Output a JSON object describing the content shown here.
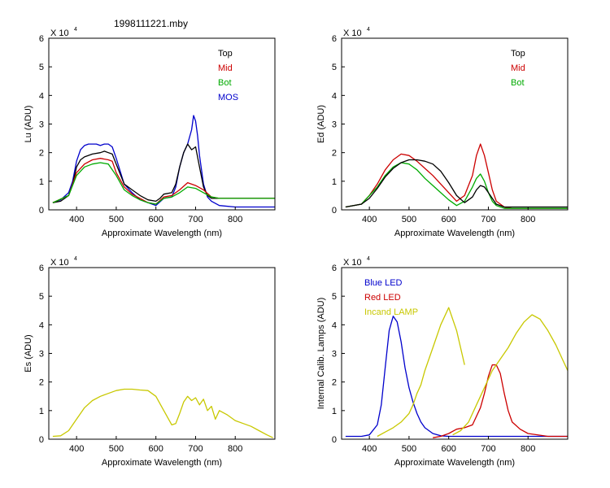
{
  "figure": {
    "title": "1998111221.mby"
  },
  "chart_data": [
    {
      "type": "line",
      "panel": "top-left",
      "xlabel": "Approximate Wavelength (nm)",
      "ylabel": "Lu (ADU)",
      "scale_label": "X 10",
      "scale_exp": "4",
      "xlim": [
        330,
        900
      ],
      "ylim": [
        0,
        6
      ],
      "xticks": [
        400,
        500,
        600,
        700,
        800
      ],
      "yticks": [
        0,
        1,
        2,
        3,
        4,
        5,
        6
      ],
      "legend": [
        {
          "label": "Top",
          "color": "#000000"
        },
        {
          "label": "Mid",
          "color": "#cc0000"
        },
        {
          "label": "Bot",
          "color": "#00aa00"
        },
        {
          "label": "MOS",
          "color": "#0000cc"
        }
      ],
      "legend_position": "top-right",
      "series": [
        {
          "name": "MOS",
          "color": "#0000cc",
          "x": [
            340,
            360,
            380,
            390,
            400,
            410,
            420,
            430,
            440,
            450,
            460,
            470,
            480,
            490,
            500,
            520,
            540,
            560,
            580,
            600,
            620,
            640,
            650,
            660,
            670,
            680,
            690,
            695,
            700,
            705,
            710,
            720,
            730,
            740,
            760,
            800,
            850,
            900
          ],
          "y": [
            0.25,
            0.35,
            0.6,
            1.0,
            1.7,
            2.1,
            2.25,
            2.3,
            2.3,
            2.3,
            2.25,
            2.3,
            2.3,
            2.2,
            1.8,
            0.9,
            0.6,
            0.35,
            0.25,
            0.15,
            0.4,
            0.45,
            0.8,
            1.5,
            2.0,
            2.3,
            2.8,
            3.3,
            3.1,
            2.6,
            1.9,
            0.9,
            0.45,
            0.3,
            0.15,
            0.1,
            0.1,
            0.1
          ]
        },
        {
          "name": "Top",
          "color": "#000000",
          "x": [
            340,
            360,
            380,
            390,
            400,
            410,
            420,
            440,
            460,
            470,
            480,
            490,
            500,
            520,
            540,
            560,
            580,
            600,
            610,
            620,
            640,
            650,
            660,
            670,
            680,
            690,
            700,
            710,
            720,
            730,
            740,
            760,
            800,
            850,
            900
          ],
          "y": [
            0.25,
            0.3,
            0.5,
            0.9,
            1.5,
            1.75,
            1.85,
            1.95,
            2.0,
            2.05,
            2.0,
            1.95,
            1.6,
            0.9,
            0.7,
            0.5,
            0.35,
            0.3,
            0.4,
            0.55,
            0.6,
            0.9,
            1.5,
            2.0,
            2.3,
            2.1,
            2.2,
            1.5,
            0.8,
            0.5,
            0.4,
            0.4,
            0.4,
            0.4,
            0.4
          ]
        },
        {
          "name": "Mid",
          "color": "#cc0000",
          "x": [
            340,
            380,
            400,
            420,
            440,
            460,
            480,
            490,
            500,
            520,
            540,
            560,
            580,
            600,
            620,
            640,
            660,
            680,
            700,
            720,
            740,
            760,
            800,
            850,
            900
          ],
          "y": [
            0.25,
            0.5,
            1.3,
            1.6,
            1.75,
            1.8,
            1.75,
            1.7,
            1.3,
            0.8,
            0.55,
            0.4,
            0.25,
            0.2,
            0.45,
            0.5,
            0.7,
            0.95,
            0.85,
            0.7,
            0.45,
            0.4,
            0.4,
            0.4,
            0.4
          ]
        },
        {
          "name": "Bot",
          "color": "#00aa00",
          "x": [
            340,
            380,
            400,
            420,
            440,
            460,
            480,
            500,
            520,
            540,
            560,
            580,
            600,
            620,
            640,
            660,
            680,
            700,
            720,
            740,
            760,
            800,
            850,
            900
          ],
          "y": [
            0.25,
            0.5,
            1.2,
            1.5,
            1.6,
            1.65,
            1.6,
            1.2,
            0.7,
            0.5,
            0.35,
            0.25,
            0.2,
            0.4,
            0.45,
            0.6,
            0.8,
            0.75,
            0.6,
            0.45,
            0.4,
            0.4,
            0.4,
            0.4
          ]
        }
      ]
    },
    {
      "type": "line",
      "panel": "top-right",
      "xlabel": "Approximate Wavelength (nm)",
      "ylabel": "Ed  (ADU)",
      "scale_label": "X 10",
      "scale_exp": "4",
      "xlim": [
        330,
        900
      ],
      "ylim": [
        0,
        6
      ],
      "xticks": [
        400,
        500,
        600,
        700,
        800
      ],
      "yticks": [
        0,
        1,
        2,
        3,
        4,
        5,
        6
      ],
      "legend": [
        {
          "label": "Top",
          "color": "#000000"
        },
        {
          "label": "Mid",
          "color": "#cc0000"
        },
        {
          "label": "Bot",
          "color": "#00aa00"
        }
      ],
      "legend_position": "top-right",
      "series": [
        {
          "name": "Mid",
          "color": "#cc0000",
          "x": [
            340,
            380,
            400,
            420,
            440,
            460,
            480,
            500,
            520,
            540,
            560,
            580,
            600,
            620,
            640,
            660,
            670,
            680,
            690,
            700,
            710,
            720,
            740,
            760,
            800,
            850,
            900
          ],
          "y": [
            0.1,
            0.2,
            0.5,
            0.9,
            1.4,
            1.75,
            1.95,
            1.9,
            1.7,
            1.45,
            1.2,
            0.9,
            0.6,
            0.3,
            0.5,
            1.2,
            1.9,
            2.3,
            1.9,
            1.3,
            0.7,
            0.3,
            0.1,
            0.05,
            0.05,
            0.05,
            0.05
          ]
        },
        {
          "name": "Bot",
          "color": "#00aa00",
          "x": [
            340,
            380,
            400,
            420,
            440,
            460,
            480,
            500,
            520,
            540,
            560,
            580,
            600,
            620,
            640,
            660,
            670,
            680,
            690,
            700,
            710,
            720,
            740,
            760,
            800,
            850,
            900
          ],
          "y": [
            0.1,
            0.2,
            0.5,
            0.8,
            1.2,
            1.5,
            1.65,
            1.6,
            1.4,
            1.1,
            0.85,
            0.6,
            0.35,
            0.15,
            0.3,
            0.8,
            1.1,
            1.25,
            1.0,
            0.6,
            0.3,
            0.15,
            0.05,
            0.05,
            0.05,
            0.05,
            0.05
          ]
        },
        {
          "name": "Top",
          "color": "#000000",
          "x": [
            340,
            380,
            400,
            420,
            440,
            460,
            480,
            500,
            520,
            540,
            560,
            580,
            600,
            620,
            640,
            660,
            670,
            680,
            690,
            700,
            710,
            720,
            740,
            760,
            800,
            850,
            900
          ],
          "y": [
            0.1,
            0.2,
            0.4,
            0.75,
            1.15,
            1.45,
            1.65,
            1.75,
            1.75,
            1.7,
            1.6,
            1.35,
            0.95,
            0.5,
            0.25,
            0.45,
            0.7,
            0.85,
            0.8,
            0.6,
            0.4,
            0.2,
            0.1,
            0.1,
            0.1,
            0.1,
            0.1
          ]
        }
      ]
    },
    {
      "type": "line",
      "panel": "bottom-left",
      "xlabel": "Approximate Wavelength (nm)",
      "ylabel": "Es  (ADU)",
      "scale_label": "X 10",
      "scale_exp": "4",
      "xlim": [
        330,
        900
      ],
      "ylim": [
        0,
        6
      ],
      "xticks": [
        400,
        500,
        600,
        700,
        800
      ],
      "yticks": [
        0,
        1,
        2,
        3,
        4,
        5,
        6
      ],
      "legend": [],
      "legend_position": "none",
      "series": [
        {
          "name": "Es",
          "color": "#c8c800",
          "x": [
            340,
            360,
            380,
            400,
            420,
            440,
            460,
            480,
            500,
            520,
            540,
            560,
            580,
            600,
            620,
            640,
            650,
            660,
            670,
            680,
            690,
            700,
            710,
            720,
            730,
            740,
            750,
            760,
            780,
            800,
            820,
            840,
            860,
            880,
            895
          ],
          "y": [
            0.1,
            0.12,
            0.3,
            0.7,
            1.1,
            1.35,
            1.5,
            1.6,
            1.7,
            1.75,
            1.75,
            1.72,
            1.7,
            1.5,
            1.0,
            0.5,
            0.55,
            0.9,
            1.3,
            1.5,
            1.35,
            1.45,
            1.2,
            1.4,
            1.0,
            1.15,
            0.7,
            1.0,
            0.85,
            0.65,
            0.55,
            0.45,
            0.3,
            0.15,
            0.05
          ]
        }
      ]
    },
    {
      "type": "line",
      "panel": "bottom-right",
      "xlabel": "Approximate Wavelength (nm)",
      "ylabel": "Internal Calib. Lamps (ADU)",
      "scale_label": "X 10",
      "scale_exp": "4",
      "xlim": [
        330,
        900
      ],
      "ylim": [
        0,
        6
      ],
      "xticks": [
        400,
        500,
        600,
        700,
        800
      ],
      "yticks": [
        0,
        1,
        2,
        3,
        4,
        5,
        6
      ],
      "legend": [
        {
          "label": "Blue LED",
          "color": "#0000cc"
        },
        {
          "label": "Red LED",
          "color": "#cc0000"
        },
        {
          "label": "Incand LAMP",
          "color": "#c8c800"
        }
      ],
      "legend_position": "top-left",
      "series": [
        {
          "name": "Blue LED",
          "color": "#0000cc",
          "x": [
            340,
            380,
            400,
            420,
            430,
            440,
            450,
            460,
            470,
            480,
            490,
            500,
            510,
            520,
            530,
            540,
            560,
            580,
            600,
            650,
            700,
            750,
            800,
            850,
            900
          ],
          "y": [
            0.1,
            0.1,
            0.15,
            0.5,
            1.2,
            2.5,
            3.8,
            4.3,
            4.1,
            3.4,
            2.5,
            1.8,
            1.3,
            0.9,
            0.6,
            0.4,
            0.2,
            0.12,
            0.1,
            0.1,
            0.1,
            0.1,
            0.1,
            0.1,
            0.1
          ]
        },
        {
          "name": "Red LED",
          "color": "#cc0000",
          "x": [
            560,
            580,
            600,
            620,
            640,
            660,
            680,
            690,
            700,
            710,
            720,
            730,
            740,
            750,
            760,
            780,
            800,
            850,
            900
          ],
          "y": [
            0.05,
            0.1,
            0.2,
            0.35,
            0.4,
            0.5,
            1.1,
            1.6,
            2.2,
            2.6,
            2.6,
            2.3,
            1.6,
            1.0,
            0.6,
            0.35,
            0.2,
            0.1,
            0.1
          ]
        },
        {
          "name": "Incand LAMP",
          "color": "#c8c800",
          "x": [
            420,
            440,
            460,
            480,
            500,
            510,
            520,
            530,
            540,
            560,
            580,
            600,
            620,
            630,
            640
          ],
          "y": [
            0.1,
            0.25,
            0.4,
            0.6,
            0.9,
            1.2,
            1.6,
            1.9,
            2.4,
            3.2,
            4.0,
            4.6,
            3.8,
            3.2,
            2.6
          ]
        },
        {
          "name": "Incand LAMP",
          "color": "#c8c800",
          "x": [
            610,
            630,
            650,
            670,
            690,
            710,
            730,
            750,
            770,
            790,
            810,
            830,
            850,
            870,
            890,
            900
          ],
          "y": [
            0.15,
            0.3,
            0.6,
            1.2,
            1.8,
            2.4,
            2.8,
            3.2,
            3.7,
            4.1,
            4.35,
            4.2,
            3.8,
            3.3,
            2.7,
            2.4
          ]
        }
      ]
    }
  ]
}
